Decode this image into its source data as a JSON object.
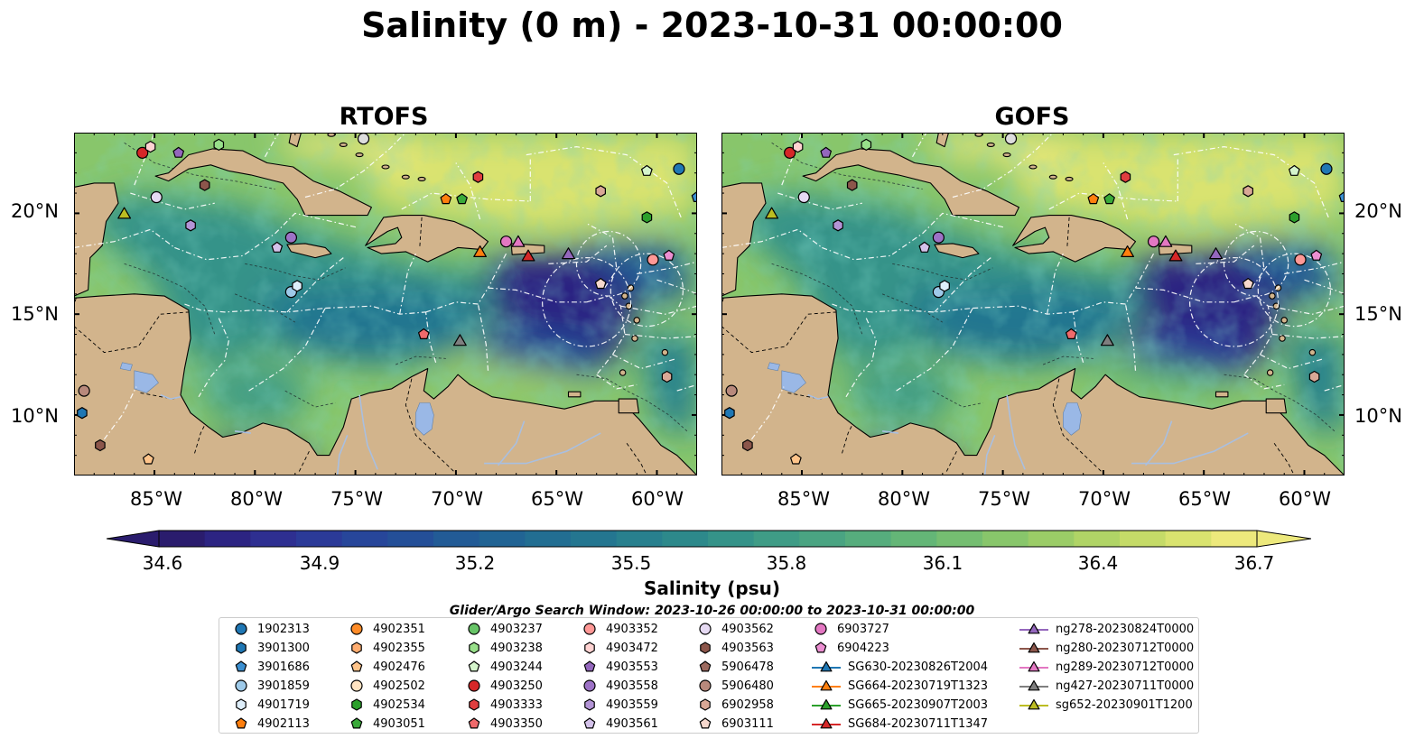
{
  "title": "Salinity (0 m) - 2023-10-31 00:00:00",
  "panels": [
    {
      "title": "RTOFS"
    },
    {
      "title": "GOFS"
    }
  ],
  "map": {
    "lon_range": [
      -89,
      -58
    ],
    "lat_range": [
      7,
      24
    ],
    "lon_ticks": [
      "85°W",
      "80°W",
      "75°W",
      "70°W",
      "65°W",
      "60°W"
    ],
    "lat_ticks": [
      "20°N",
      "15°N",
      "10°N"
    ],
    "colors": {
      "land": "#d2b48c",
      "lake": "#9ab8e6",
      "river": "#a9bfe0"
    }
  },
  "colorbar": {
    "label": "Salinity (psu)",
    "range": [
      34.6,
      36.7
    ],
    "ticks": [
      "34.6",
      "34.9",
      "35.2",
      "35.5",
      "35.8",
      "36.1",
      "36.4",
      "36.7"
    ],
    "colors": [
      "#2a1c6d",
      "#2c2482",
      "#2e2f91",
      "#2b3a98",
      "#27469a",
      "#244f98",
      "#225b96",
      "#216494",
      "#226e92",
      "#247690",
      "#28808e",
      "#2d898b",
      "#359389",
      "#3f9c86",
      "#4aa482",
      "#56ad7d",
      "#64b677",
      "#75be71",
      "#88c66b",
      "#9bcc67",
      "#b0d466",
      "#c5db68",
      "#d9e36f",
      "#ede97c"
    ]
  },
  "search_window": "Glider/Argo Search Window: 2023-10-26 00:00:00 to 2023-10-31 00:00:00",
  "legend": {
    "items": [
      {
        "name": "1902313",
        "shape": "circle",
        "color": "#1f77b4"
      },
      {
        "name": "3901300",
        "shape": "hexagon",
        "color": "#1f77b4"
      },
      {
        "name": "3901686",
        "shape": "pentagon",
        "color": "#3b8fd0"
      },
      {
        "name": "3901859",
        "shape": "circle",
        "color": "#9ecae9"
      },
      {
        "name": "4901719",
        "shape": "hexagon",
        "color": "#deeefa"
      },
      {
        "name": "4902113",
        "shape": "pentagon",
        "color": "#ff7f0e"
      },
      {
        "name": "4902351",
        "shape": "circle",
        "color": "#ff8c28"
      },
      {
        "name": "4902355",
        "shape": "hexagon",
        "color": "#ffad70"
      },
      {
        "name": "4902476",
        "shape": "pentagon",
        "color": "#ffc48a"
      },
      {
        "name": "4902502",
        "shape": "circle",
        "color": "#ffe3c2"
      },
      {
        "name": "4902534",
        "shape": "hexagon",
        "color": "#2ca02c"
      },
      {
        "name": "4903051",
        "shape": "pentagon",
        "color": "#3aaa3a"
      },
      {
        "name": "4903237",
        "shape": "circle",
        "color": "#67c467"
      },
      {
        "name": "4903238",
        "shape": "hexagon",
        "color": "#98df8a"
      },
      {
        "name": "4903244",
        "shape": "pentagon",
        "color": "#d5f5cc"
      },
      {
        "name": "4903250",
        "shape": "circle",
        "color": "#d62728"
      },
      {
        "name": "4903333",
        "shape": "hexagon",
        "color": "#e03e3f"
      },
      {
        "name": "4903350",
        "shape": "pentagon",
        "color": "#f06a6b"
      },
      {
        "name": "4903352",
        "shape": "circle",
        "color": "#ff9896"
      },
      {
        "name": "4903472",
        "shape": "hexagon",
        "color": "#ffd3d2"
      },
      {
        "name": "4903553",
        "shape": "pentagon",
        "color": "#9467bd"
      },
      {
        "name": "4903558",
        "shape": "circle",
        "color": "#9d72c6"
      },
      {
        "name": "4903559",
        "shape": "hexagon",
        "color": "#b394d6"
      },
      {
        "name": "4903561",
        "shape": "pentagon",
        "color": "#d4c2ea"
      },
      {
        "name": "4903562",
        "shape": "circle",
        "color": "#e6daf3"
      },
      {
        "name": "4903563",
        "shape": "hexagon",
        "color": "#8c564b"
      },
      {
        "name": "5906478",
        "shape": "pentagon",
        "color": "#9c6a5f"
      },
      {
        "name": "5906480",
        "shape": "circle",
        "color": "#b8897c"
      },
      {
        "name": "6902958",
        "shape": "hexagon",
        "color": "#d9a896"
      },
      {
        "name": "6903111",
        "shape": "pentagon",
        "color": "#f7d8cd"
      },
      {
        "name": "6903727",
        "shape": "circle",
        "color": "#e377c2"
      },
      {
        "name": "6904223",
        "shape": "pentagon",
        "color": "#ec8fd2"
      },
      {
        "name": "SG630-20230826T2004",
        "shape": "triangle",
        "color": "#1f77b4"
      },
      {
        "name": "SG664-20230719T1323",
        "shape": "triangle",
        "color": "#ff7f0e"
      },
      {
        "name": "SG665-20230907T2003",
        "shape": "triangle",
        "color": "#2ca02c"
      },
      {
        "name": "SG684-20230711T1347",
        "shape": "triangle",
        "color": "#d62728"
      },
      {
        "name": "ng278-20230824T0000",
        "shape": "triangle",
        "color": "#9467bd"
      },
      {
        "name": "ng280-20230712T0000",
        "shape": "triangle",
        "color": "#8c564b"
      },
      {
        "name": "ng289-20230712T0000",
        "shape": "triangle",
        "color": "#e377c2"
      },
      {
        "name": "ng427-20230711T0000",
        "shape": "triangle",
        "color": "#7f7f7f"
      },
      {
        "name": "sg652-20230901T1200",
        "shape": "triangle",
        "color": "#bcbd22"
      }
    ]
  },
  "observations": [
    {
      "id": "1902313",
      "lon": -58.9,
      "lat": 22.2
    },
    {
      "id": "3901686",
      "lon": -58.0,
      "lat": 20.8
    },
    {
      "id": "4903250",
      "lon": -85.6,
      "lat": 23.0
    },
    {
      "id": "4903472",
      "lon": -85.2,
      "lat": 23.3
    },
    {
      "id": "4903553",
      "lon": -83.8,
      "lat": 23.0
    },
    {
      "id": "4903238",
      "lon": -81.8,
      "lat": 23.4
    },
    {
      "id": "4903111",
      "lon": -74.6,
      "lat": 23.7
    },
    {
      "id": "4903562",
      "lon": -84.9,
      "lat": 20.8
    },
    {
      "id": "4903563",
      "lon": -82.5,
      "lat": 21.4
    },
    {
      "id": "4903559",
      "lon": -83.2,
      "lat": 19.4
    },
    {
      "id": "4903561",
      "lon": -78.9,
      "lat": 18.3
    },
    {
      "id": "4903558",
      "lon": -78.2,
      "lat": 18.8
    },
    {
      "id": "3901859",
      "lon": -78.2,
      "lat": 16.1
    },
    {
      "id": "4901719",
      "lon": -77.9,
      "lat": 16.4
    },
    {
      "id": "4903333",
      "lon": -68.9,
      "lat": 21.8
    },
    {
      "id": "4902113",
      "lon": -70.5,
      "lat": 20.7
    },
    {
      "id": "4903051",
      "lon": -69.7,
      "lat": 20.7
    },
    {
      "id": "4903244",
      "lon": -60.5,
      "lat": 22.1
    },
    {
      "id": "6902958",
      "lon": -62.8,
      "lat": 21.1
    },
    {
      "id": "4902534",
      "lon": -60.5,
      "lat": 19.8
    },
    {
      "id": "6903727",
      "lon": -67.5,
      "lat": 18.6
    },
    {
      "id": "4903352",
      "lon": -60.2,
      "lat": 17.7
    },
    {
      "id": "6904223",
      "lon": -59.4,
      "lat": 17.9
    },
    {
      "id": "6903111",
      "lon": -62.8,
      "lat": 16.5
    },
    {
      "id": "4903350",
      "lon": -71.6,
      "lat": 14.0
    },
    {
      "id": "6902958",
      "lon": -59.5,
      "lat": 11.9
    },
    {
      "id": "5906480",
      "lon": -88.5,
      "lat": 11.2
    },
    {
      "id": "3901300",
      "lon": -88.6,
      "lat": 10.1
    },
    {
      "id": "4903563",
      "lon": -87.7,
      "lat": 8.5
    },
    {
      "id": "4902476",
      "lon": -85.3,
      "lat": 7.8
    }
  ],
  "gliders": [
    {
      "id": "sg652-20230901T1200",
      "lon": -86.5,
      "lat": 20.0
    },
    {
      "id": "SG664-20230719T1323",
      "lon": -68.8,
      "lat": 18.1
    },
    {
      "id": "ng289-20230712T0000",
      "lon": -66.9,
      "lat": 18.6
    },
    {
      "id": "SG684-20230711T1347",
      "lon": -66.4,
      "lat": 17.9
    },
    {
      "id": "ng278-20230824T0000",
      "lon": -64.4,
      "lat": 18.0
    },
    {
      "id": "ng427-20230711T0000",
      "lon": -69.8,
      "lat": 13.7
    }
  ]
}
